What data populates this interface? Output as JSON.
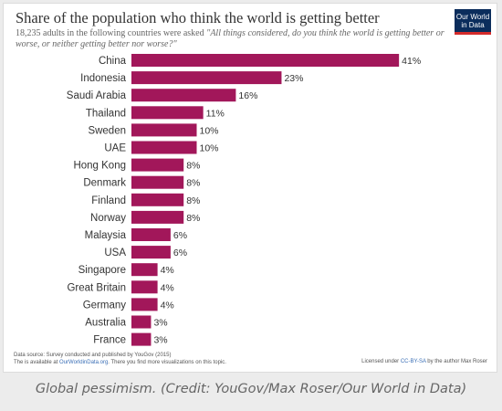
{
  "chart_data": {
    "type": "bar",
    "orientation": "horizontal",
    "title": "Share of the population who think the world is getting better",
    "subtitle_prefix": "18,235 adults in the following countries were asked",
    "subtitle_quote": "\"All things considered, do you think the world is getting better or worse, or neither getting better nor worse?\"",
    "categories": [
      "China",
      "Indonesia",
      "Saudi Arabia",
      "Thailand",
      "Sweden",
      "UAE",
      "Hong Kong",
      "Denmark",
      "Finland",
      "Norway",
      "Malaysia",
      "USA",
      "Singapore",
      "Great Britain",
      "Germany",
      "Australia",
      "France"
    ],
    "values": [
      41,
      23,
      16,
      11,
      10,
      10,
      8,
      8,
      8,
      8,
      6,
      6,
      4,
      4,
      4,
      3,
      3
    ],
    "value_suffix": "%",
    "bar_color": "#a2175a",
    "grid": false,
    "legend": "none"
  },
  "logo": {
    "line1": "Our World",
    "line2": "in Data",
    "bg_color": "#0b2d5c",
    "accent_color": "#d42b2b"
  },
  "footer": {
    "source_line1": "Data source: Survey conducted and published by YouGov (2015)",
    "source_line2_prefix": "The is available at ",
    "source_link": "OurWorldinData.org",
    "source_line2_suffix": ". There you find more visualizations on this topic.",
    "license_prefix": "Licensed under ",
    "license_link": "CC-BY-SA",
    "license_suffix": " by the author Max Roser"
  },
  "caption": "Global pessimism. (Credit: YouGov/Max Roser/Our World in Data)"
}
